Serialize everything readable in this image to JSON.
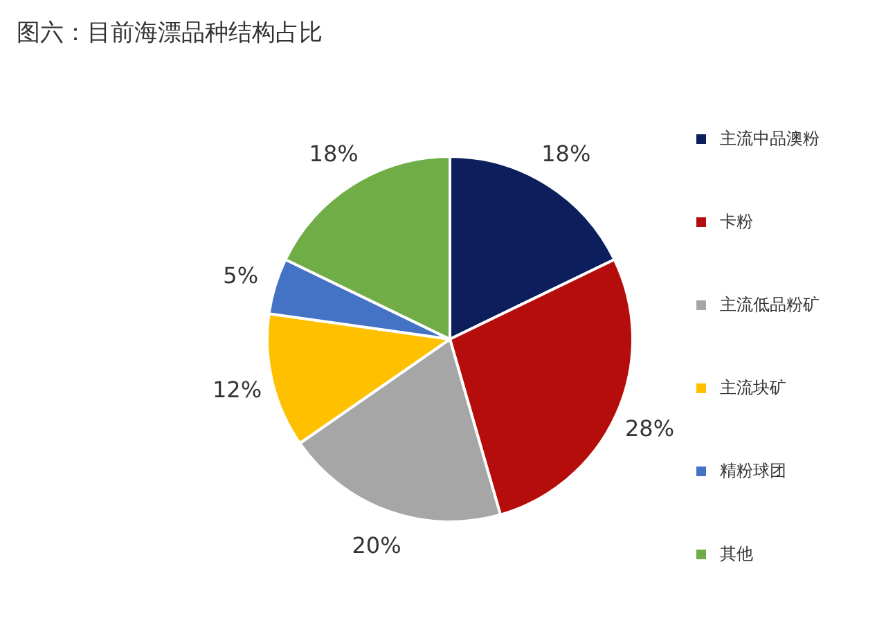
{
  "chart_data": {
    "type": "pie",
    "title": "图六：目前海漂品种结构占比",
    "categories": [
      "主流中品澳粉",
      "卡粉",
      "主流低品粉矿",
      "主流块矿",
      "精粉球团",
      "其他"
    ],
    "values": [
      18,
      28,
      20,
      12,
      5,
      18
    ],
    "value_labels": [
      "18%",
      "28%",
      "20%",
      "12%",
      "5%",
      "18%"
    ],
    "colors": [
      "#0c1f5c",
      "#b50c0c",
      "#a6a6a6",
      "#ffc000",
      "#4472c4",
      "#70ad47"
    ],
    "legend": "right"
  }
}
